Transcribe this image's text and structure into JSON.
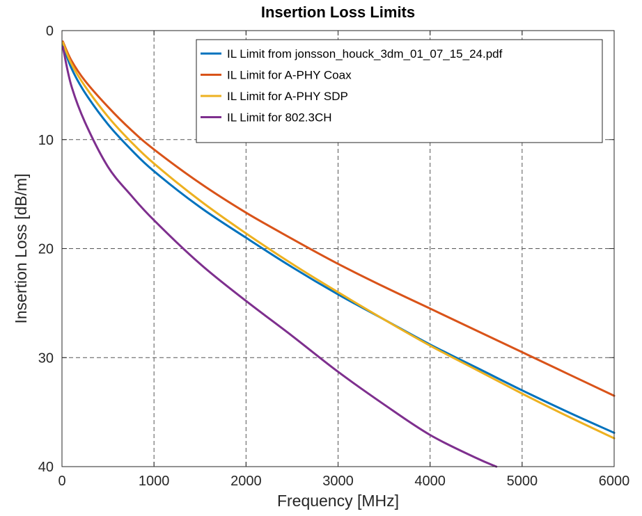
{
  "chart_data": {
    "type": "line",
    "title": "Insertion Loss Limits",
    "xlabel": "Frequency [MHz]",
    "ylabel": "Insertion Loss [dB/m]",
    "xlim": [
      0,
      6000
    ],
    "ylim": [
      0,
      40
    ],
    "y_reversed": true,
    "grid": true,
    "legend_position": "top-right",
    "xticks": [
      0,
      1000,
      2000,
      3000,
      4000,
      5000,
      6000
    ],
    "xtick_labels": [
      "0",
      "1000",
      "2000",
      "3000",
      "4000",
      "5000",
      "6000"
    ],
    "yticks": [
      0,
      10,
      20,
      30,
      40
    ],
    "ytick_labels": [
      "0",
      "10",
      "20",
      "30",
      "40"
    ],
    "series": [
      {
        "name": "IL Limit from jonsson_houck_3dm_01_07_15_24.pdf",
        "color": "#0072BD",
        "x": [
          10,
          100,
          250,
          500,
          750,
          1000,
          1500,
          2000,
          2500,
          3000,
          3500,
          4000,
          4500,
          5000,
          5500,
          6000
        ],
        "y": [
          1.3,
          3.4,
          5.7,
          8.6,
          10.9,
          12.9,
          16.2,
          19.0,
          21.7,
          24.2,
          26.5,
          28.8,
          30.9,
          33.0,
          35.0,
          36.9
        ]
      },
      {
        "name": "IL Limit for A-PHY Coax",
        "color": "#D95319",
        "x": [
          10,
          100,
          250,
          500,
          750,
          1000,
          1500,
          2000,
          2500,
          3000,
          3500,
          4000,
          4500,
          5000,
          5500,
          6000
        ],
        "y": [
          1.0,
          2.7,
          4.6,
          7.0,
          9.1,
          10.9,
          14.0,
          16.7,
          19.1,
          21.4,
          23.5,
          25.5,
          27.5,
          29.5,
          31.5,
          33.5
        ]
      },
      {
        "name": "IL Limit for A-PHY SDP",
        "color": "#EDB120",
        "x": [
          10,
          100,
          250,
          500,
          750,
          1000,
          1500,
          2000,
          2500,
          3000,
          3500,
          4000,
          4500,
          5000,
          5500,
          6000
        ],
        "y": [
          1.1,
          3.0,
          5.1,
          7.9,
          10.2,
          12.2,
          15.6,
          18.6,
          21.4,
          24.0,
          26.5,
          28.9,
          31.1,
          33.3,
          35.4,
          37.4
        ]
      },
      {
        "name": "IL Limit for 802.3CH",
        "color": "#7E2F8E",
        "x": [
          10,
          100,
          250,
          500,
          750,
          1000,
          1500,
          2000,
          2500,
          3000,
          3500,
          4000,
          4500,
          4720
        ],
        "y": [
          1.5,
          5.0,
          8.4,
          12.5,
          15.1,
          17.4,
          21.4,
          24.8,
          28.0,
          31.3,
          34.3,
          37.1,
          39.2,
          40.0
        ]
      }
    ]
  }
}
